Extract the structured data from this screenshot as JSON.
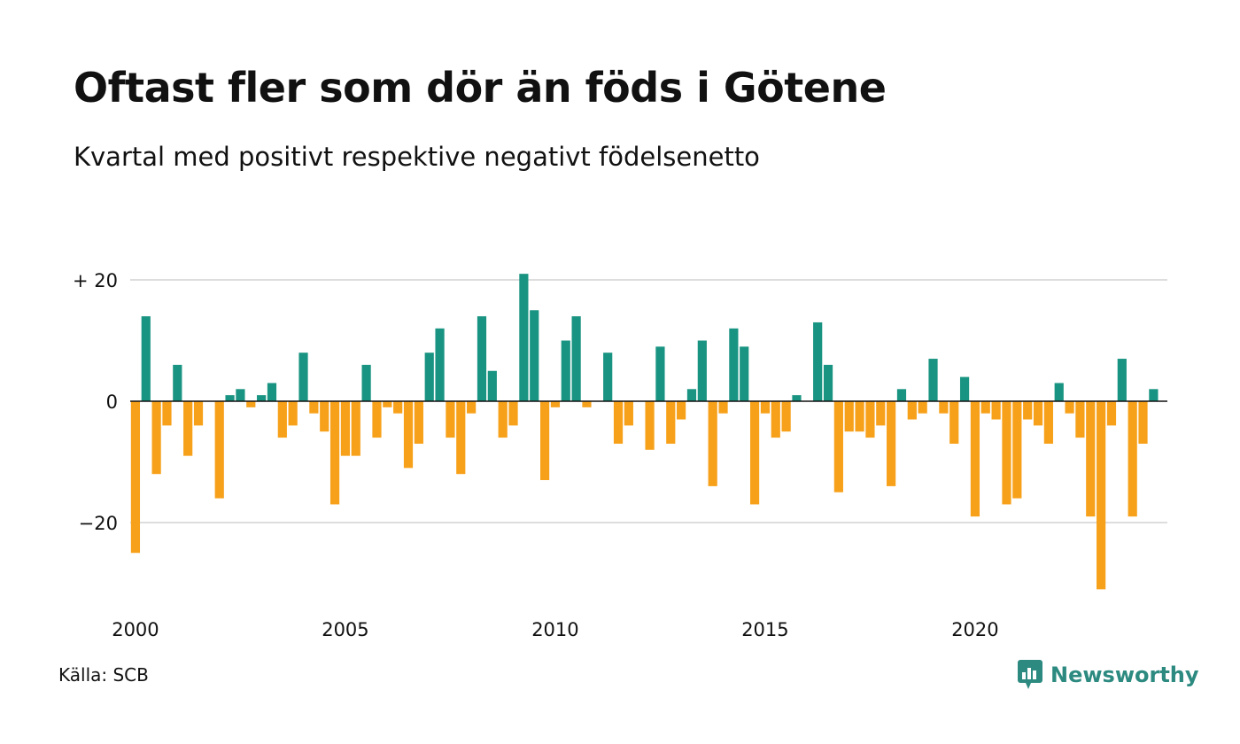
{
  "header": {
    "title": "Oftast fler som dör än föds i Götene",
    "subtitle": "Kvartal med positivt respektive negativt födelsenetto"
  },
  "footer": {
    "source": "Källa: SCB",
    "brand": "Newsworthy"
  },
  "colors": {
    "positive": "#1a9482",
    "negative": "#f7a11a",
    "grid": "#dddddd",
    "zero_line": "#111111",
    "brand": "#2c8a80"
  },
  "chart_data": {
    "type": "bar",
    "title": "Oftast fler som dör än föds i Götene",
    "subtitle": "Kvartal med positivt respektive negativt födelsenetto",
    "xlabel": "",
    "ylabel": "",
    "ylim": [
      -31,
      21
    ],
    "grid": true,
    "y_ticks": [
      {
        "value": 20,
        "label": "+ 20"
      },
      {
        "value": 0,
        "label": "0"
      },
      {
        "value": -20,
        "label": "−20"
      }
    ],
    "x_ticks": [
      {
        "value": 2000,
        "label": "2000"
      },
      {
        "value": 2005,
        "label": "2005"
      },
      {
        "value": 2010,
        "label": "2010"
      },
      {
        "value": 2015,
        "label": "2015"
      },
      {
        "value": 2020,
        "label": "2020"
      }
    ],
    "x_start": 2000,
    "periods_per_year": 4,
    "values": [
      -25,
      14,
      -12,
      -4,
      6,
      -9,
      -4,
      0,
      -16,
      1,
      2,
      -1,
      1,
      3,
      -6,
      -4,
      8,
      -2,
      -5,
      -17,
      -9,
      -9,
      6,
      -6,
      -1,
      -2,
      -11,
      -7,
      8,
      12,
      -6,
      -12,
      -2,
      14,
      5,
      -6,
      -4,
      21,
      15,
      -13,
      -1,
      10,
      14,
      -1,
      0,
      8,
      -7,
      -4,
      0,
      -8,
      9,
      -7,
      -3,
      2,
      10,
      -14,
      -2,
      12,
      9,
      -17,
      -2,
      -6,
      -5,
      1,
      0,
      13,
      6,
      -15,
      -5,
      -5,
      -6,
      -4,
      -14,
      2,
      -3,
      -2,
      7,
      -2,
      -7,
      4,
      -19,
      -2,
      -3,
      -17,
      -16,
      -3,
      -4,
      -7,
      3,
      -2,
      -6,
      -19,
      -31,
      -4,
      7,
      -19,
      -7,
      2
    ]
  }
}
